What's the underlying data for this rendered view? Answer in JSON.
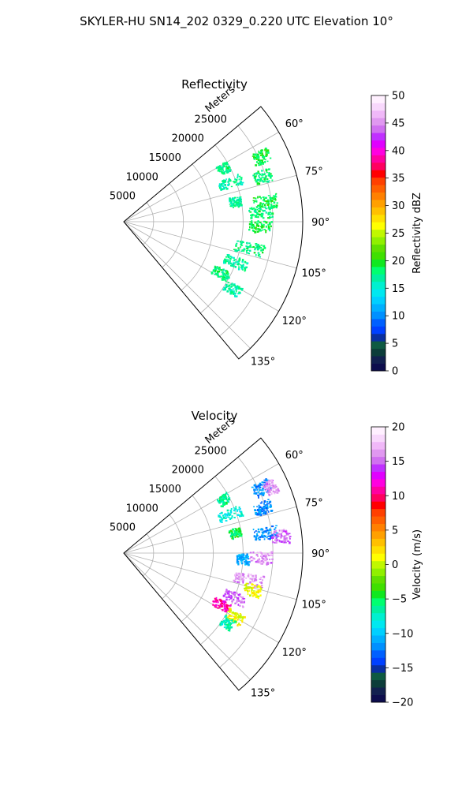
{
  "figure": {
    "suptitle": "SKYLER-HU  SN14_202  0329_0.220 UTC Elevation 10°"
  },
  "chart_data": [
    {
      "type": "heatmap",
      "title": "Reflectivity",
      "radial_label": "Meters",
      "radial_ticks": [
        "5000",
        "10000",
        "15000",
        "20000",
        "25000"
      ],
      "radial_tick_values": [
        5000,
        10000,
        15000,
        20000,
        25000
      ],
      "rlim": [
        0,
        30000
      ],
      "azimuth_ticks": [
        "60°",
        "75°",
        "90°",
        "105°",
        "120°",
        "135°"
      ],
      "azimuth_tick_values": [
        60,
        75,
        90,
        105,
        120,
        135
      ],
      "azimuth_range": [
        50,
        140
      ],
      "grid": true,
      "colorbar": {
        "label": "Reflectivity dBZ",
        "ticks": [
          "0",
          "5",
          "10",
          "15",
          "20",
          "25",
          "30",
          "35",
          "40",
          "45",
          "50"
        ],
        "range": [
          0,
          50
        ],
        "colors": [
          "#0d0d4d",
          "#12204f",
          "#0c3d3a",
          "#0e5a42",
          "#0a2fa0",
          "#0040ff",
          "#0060ff",
          "#0090ff",
          "#00b0ff",
          "#00d0ff",
          "#00e8f0",
          "#00f0d0",
          "#00f0a0",
          "#00ff70",
          "#10e820",
          "#40e000",
          "#60e000",
          "#90f000",
          "#c0f800",
          "#ffff00",
          "#ffe000",
          "#ffc000",
          "#ffa000",
          "#ff8000",
          "#ff6000",
          "#ff4000",
          "#ff0000",
          "#ff0060",
          "#ff00a0",
          "#ff00e0",
          "#e000ff",
          "#c030ff",
          "#d070f0",
          "#e098f0",
          "#f0b8f8",
          "#f8d8fc",
          "#fff0ff"
        ]
      },
      "echo_regions": [
        {
          "az": 62,
          "r": [
            18000,
            20000
          ],
          "value": 18
        },
        {
          "az": 65,
          "r": [
            24000,
            27000
          ],
          "value": 19
        },
        {
          "az": 70,
          "r": [
            17000,
            21000
          ],
          "value": 17
        },
        {
          "az": 72,
          "r": [
            23000,
            26000
          ],
          "value": 18
        },
        {
          "az": 80,
          "r": [
            18000,
            20000
          ],
          "value": 17
        },
        {
          "az": 82,
          "r": [
            22000,
            26000
          ],
          "value": 19
        },
        {
          "az": 86,
          "r": [
            21000,
            25000
          ],
          "value": 18
        },
        {
          "az": 92,
          "r": [
            21000,
            25000
          ],
          "value": 19
        },
        {
          "az": 102,
          "r": [
            19000,
            24000
          ],
          "value": 18
        },
        {
          "az": 110,
          "r": [
            18000,
            22000
          ],
          "value": 17
        },
        {
          "az": 118,
          "r": [
            17000,
            20000
          ],
          "value": 18
        },
        {
          "az": 122,
          "r": [
            20000,
            23000
          ],
          "value": 17
        }
      ]
    },
    {
      "type": "heatmap",
      "title": "Velocity",
      "radial_label": "Meters",
      "radial_ticks": [
        "5000",
        "10000",
        "15000",
        "20000",
        "25000"
      ],
      "radial_tick_values": [
        5000,
        10000,
        15000,
        20000,
        25000
      ],
      "rlim": [
        0,
        30000
      ],
      "azimuth_ticks": [
        "60°",
        "75°",
        "90°",
        "105°",
        "120°",
        "135°"
      ],
      "azimuth_tick_values": [
        60,
        75,
        90,
        105,
        120,
        135
      ],
      "azimuth_range": [
        50,
        140
      ],
      "grid": true,
      "colorbar": {
        "label": "Velocity (m/s)",
        "ticks": [
          "−20",
          "−15",
          "−10",
          "−5",
          "0",
          "5",
          "10",
          "15",
          "20"
        ],
        "range": [
          -20,
          20
        ],
        "colors": [
          "#0d0d4d",
          "#12204f",
          "#0c3d3a",
          "#0e5a42",
          "#0a2fa0",
          "#0040ff",
          "#0060ff",
          "#0090ff",
          "#00b0ff",
          "#00d0ff",
          "#00e8f0",
          "#00f0d0",
          "#00f0a0",
          "#00ff70",
          "#10e820",
          "#40e000",
          "#60e000",
          "#90f000",
          "#c0f800",
          "#ffff00",
          "#ffe000",
          "#ffc000",
          "#ffa000",
          "#ff8000",
          "#ff6000",
          "#ff4000",
          "#ff0000",
          "#ff0060",
          "#ff00a0",
          "#ff00e0",
          "#e000ff",
          "#c030ff",
          "#d070f0",
          "#e098f0",
          "#f0b8f8",
          "#f8d8fc",
          "#fff0ff"
        ]
      },
      "echo_regions": [
        {
          "az": 62,
          "r": [
            18000,
            20000
          ],
          "value": -6
        },
        {
          "az": 65,
          "r": [
            24000,
            27000
          ],
          "value": -12
        },
        {
          "az": 66,
          "r": [
            26000,
            28000
          ],
          "value": 16
        },
        {
          "az": 70,
          "r": [
            17000,
            21000
          ],
          "value": -8
        },
        {
          "az": 72,
          "r": [
            23000,
            26000
          ],
          "value": -12
        },
        {
          "az": 80,
          "r": [
            18000,
            20000
          ],
          "value": -5
        },
        {
          "az": 82,
          "r": [
            22000,
            26000
          ],
          "value": -12
        },
        {
          "az": 84,
          "r": [
            25000,
            28000
          ],
          "value": 15
        },
        {
          "az": 92,
          "r": [
            21000,
            25000
          ],
          "value": 16
        },
        {
          "az": 93,
          "r": [
            19000,
            21000
          ],
          "value": -11
        },
        {
          "az": 102,
          "r": [
            19000,
            24000
          ],
          "value": 16
        },
        {
          "az": 106,
          "r": [
            21000,
            24000
          ],
          "value": 1
        },
        {
          "az": 112,
          "r": [
            18000,
            22000
          ],
          "value": 15
        },
        {
          "az": 118,
          "r": [
            17000,
            20000
          ],
          "value": 11
        },
        {
          "az": 120,
          "r": [
            20000,
            23000
          ],
          "value": 1
        },
        {
          "az": 124,
          "r": [
            20000,
            22000
          ],
          "value": -7
        }
      ]
    }
  ]
}
